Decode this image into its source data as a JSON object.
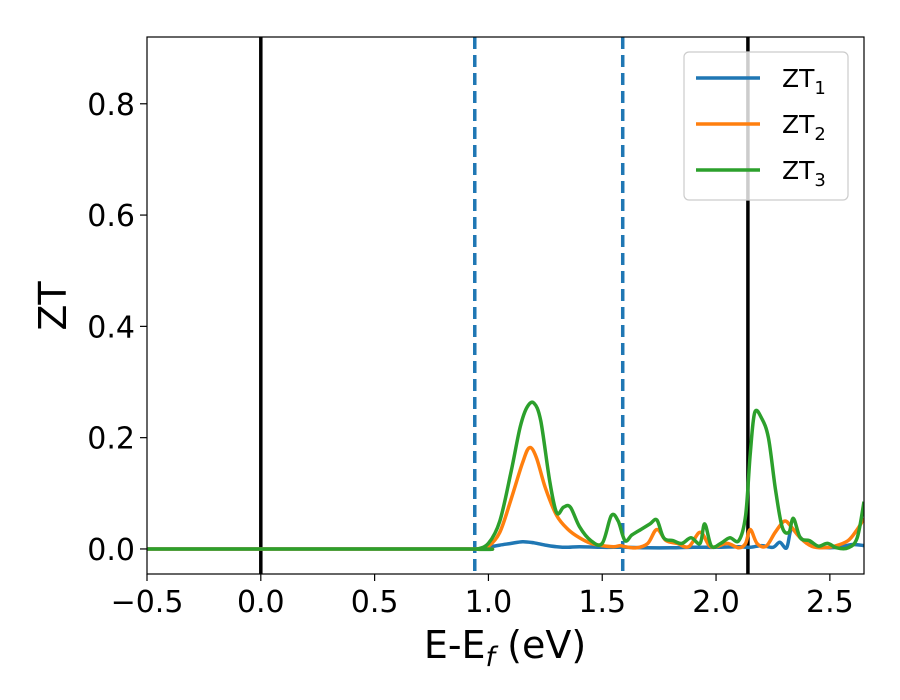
{
  "chart_data": {
    "type": "line",
    "xlabel": "E-E",
    "xlabel_sub": "f",
    "xlabel_unit": " (eV)",
    "ylabel": "ZT",
    "xlim": [
      -0.5,
      2.65
    ],
    "ylim": [
      -0.045,
      0.92
    ],
    "xticks": [
      -0.5,
      0.0,
      0.5,
      1.0,
      1.5,
      2.0,
      2.5
    ],
    "xtick_labels": [
      "−0.5",
      "0.0",
      "0.5",
      "1.0",
      "1.5",
      "2.0",
      "2.5"
    ],
    "yticks": [
      0.0,
      0.2,
      0.4,
      0.6,
      0.8
    ],
    "ytick_labels": [
      "0.0",
      "0.2",
      "0.4",
      "0.6",
      "0.8"
    ],
    "legend_position": "top-right",
    "vlines": [
      {
        "x": 0.0,
        "style": "solid",
        "color": "#000000"
      },
      {
        "x": 2.14,
        "style": "solid",
        "color": "#000000"
      },
      {
        "x": 0.94,
        "style": "dashed",
        "color": "#1f77b4"
      },
      {
        "x": 1.59,
        "style": "dashed",
        "color": "#1f77b4"
      }
    ],
    "series": [
      {
        "name": "ZT",
        "name_sub": "1",
        "color": "#1f77b4",
        "x": [
          -0.5,
          0.9,
          0.95,
          1.0,
          1.05,
          1.1,
          1.15,
          1.2,
          1.25,
          1.3,
          1.35,
          1.4,
          1.5,
          1.6,
          1.7,
          1.8,
          1.9,
          2.0,
          2.1,
          2.15,
          2.2,
          2.25,
          2.28,
          2.31,
          2.33,
          2.36,
          2.4,
          2.45,
          2.5,
          2.55,
          2.6,
          2.65
        ],
        "y": [
          0,
          0,
          0,
          0.003,
          0.007,
          0.01,
          0.013,
          0.011,
          0.007,
          0.004,
          0.003,
          0.004,
          0.003,
          0.003,
          0.002,
          0.002,
          0.003,
          0.003,
          0.004,
          0.003,
          0.006,
          0.003,
          0.012,
          0.002,
          0.035,
          0.025,
          0.01,
          0.004,
          0.002,
          0.004,
          0.008,
          0.006
        ]
      },
      {
        "name": "ZT",
        "name_sub": "2",
        "color": "#ff7f0e",
        "x": [
          -0.5,
          0.9,
          0.95,
          1.0,
          1.05,
          1.1,
          1.15,
          1.18,
          1.21,
          1.25,
          1.3,
          1.35,
          1.4,
          1.45,
          1.5,
          1.55,
          1.58,
          1.6,
          1.65,
          1.7,
          1.74,
          1.78,
          1.83,
          1.88,
          1.93,
          1.97,
          2.0,
          2.05,
          2.1,
          2.13,
          2.15,
          2.18,
          2.22,
          2.26,
          2.3,
          2.33,
          2.37,
          2.42,
          2.47,
          2.52,
          2.58,
          2.62,
          2.65
        ],
        "y": [
          0,
          0,
          0,
          0.005,
          0.03,
          0.09,
          0.155,
          0.182,
          0.165,
          0.11,
          0.06,
          0.035,
          0.02,
          0.01,
          0.006,
          0.004,
          0.006,
          0.004,
          0.002,
          0.01,
          0.035,
          0.015,
          0.01,
          0.004,
          0.03,
          0.006,
          0.004,
          0.01,
          0.002,
          0.01,
          0.035,
          0.01,
          0.005,
          0.03,
          0.05,
          0.04,
          0.02,
          0.005,
          0.002,
          0.005,
          0.015,
          0.035,
          0.055
        ]
      },
      {
        "name": "ZT",
        "name_sub": "3",
        "color": "#2ca02c",
        "x": [
          -0.5,
          0.9,
          0.95,
          1.0,
          1.05,
          1.1,
          1.14,
          1.17,
          1.2,
          1.23,
          1.27,
          1.3,
          1.33,
          1.36,
          1.4,
          1.45,
          1.5,
          1.54,
          1.57,
          1.6,
          1.63,
          1.67,
          1.71,
          1.74,
          1.77,
          1.81,
          1.85,
          1.89,
          1.93,
          1.95,
          1.98,
          2.02,
          2.06,
          2.1,
          2.13,
          2.15,
          2.17,
          2.2,
          2.23,
          2.26,
          2.29,
          2.32,
          2.34,
          2.37,
          2.41,
          2.45,
          2.49,
          2.53,
          2.58,
          2.62,
          2.65
        ],
        "y": [
          0,
          0,
          0,
          0.01,
          0.05,
          0.14,
          0.22,
          0.255,
          0.262,
          0.23,
          0.12,
          0.065,
          0.075,
          0.075,
          0.04,
          0.015,
          0.01,
          0.06,
          0.05,
          0.015,
          0.025,
          0.035,
          0.045,
          0.052,
          0.02,
          0.015,
          0.01,
          0.02,
          0.01,
          0.045,
          0.005,
          0.01,
          0.02,
          0.015,
          0.06,
          0.17,
          0.245,
          0.235,
          0.2,
          0.11,
          0.04,
          0.03,
          0.055,
          0.02,
          0.015,
          0.005,
          0.01,
          0.002,
          0.002,
          0.02,
          0.085
        ]
      }
    ]
  }
}
